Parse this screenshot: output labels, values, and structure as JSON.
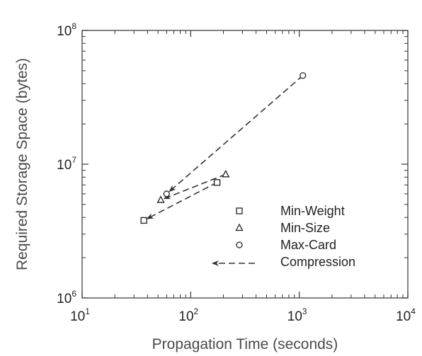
{
  "chart_data": {
    "type": "scatter",
    "title": "",
    "xlabel": "Propagation Time (seconds)",
    "ylabel": "Required Storage Space (bytes)",
    "x_scale": "log",
    "y_scale": "log",
    "xlim": [
      10,
      10000
    ],
    "ylim": [
      1000000,
      100000000
    ],
    "x_ticks": [
      {
        "base": "10",
        "exp": "1",
        "value": 10
      },
      {
        "base": "10",
        "exp": "2",
        "value": 100
      },
      {
        "base": "10",
        "exp": "3",
        "value": 1000
      },
      {
        "base": "10",
        "exp": "4",
        "value": 10000
      }
    ],
    "y_ticks": [
      {
        "base": "10",
        "exp": "6",
        "value": 1000000
      },
      {
        "base": "10",
        "exp": "7",
        "value": 10000000
      },
      {
        "base": "10",
        "exp": "8",
        "value": 100000000
      }
    ],
    "grid": false,
    "legend_position": "lower-right",
    "series": [
      {
        "name": "Min-Weight",
        "marker": "square",
        "points": [
          {
            "x": 37,
            "y": 3800000
          },
          {
            "x": 175,
            "y": 7300000
          }
        ]
      },
      {
        "name": "Min-Size",
        "marker": "triangle",
        "points": [
          {
            "x": 53,
            "y": 5400000
          },
          {
            "x": 210,
            "y": 8400000
          }
        ]
      },
      {
        "name": "Max-Card",
        "marker": "circle",
        "points": [
          {
            "x": 60,
            "y": 6000000
          },
          {
            "x": 1080,
            "y": 46000000
          }
        ]
      }
    ],
    "compression_arrows": [
      {
        "from": {
          "x": 1080,
          "y": 46000000
        },
        "to": {
          "x": 60,
          "y": 6000000
        }
      },
      {
        "from": {
          "x": 210,
          "y": 8400000
        },
        "to": {
          "x": 53,
          "y": 5400000
        }
      },
      {
        "from": {
          "x": 175,
          "y": 7300000
        },
        "to": {
          "x": 37,
          "y": 3800000
        }
      }
    ],
    "legend": [
      {
        "label": "Min-Weight",
        "marker": "square"
      },
      {
        "label": "Min-Size",
        "marker": "triangle"
      },
      {
        "label": "Max-Card",
        "marker": "circle"
      },
      {
        "label": "Compression",
        "marker": "dashed-arrow"
      }
    ]
  }
}
